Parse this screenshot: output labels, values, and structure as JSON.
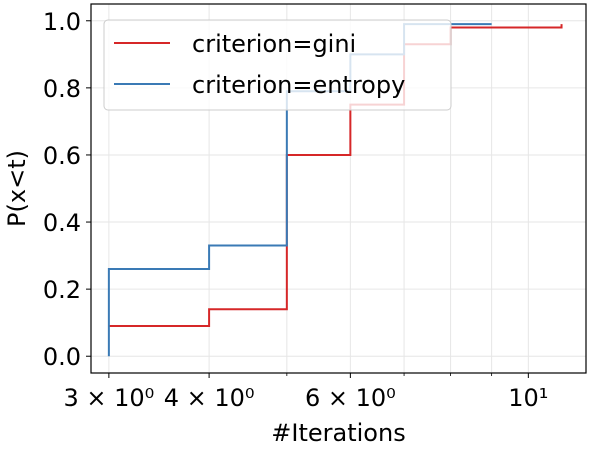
{
  "chart_data": {
    "type": "line",
    "step": "post",
    "x_scale": "log",
    "xlabel": "#Iterations",
    "ylabel": "P(x<t)",
    "xlim": [
      2.85,
      11.8
    ],
    "ylim": [
      -0.05,
      1.05
    ],
    "grid": true,
    "legend_position": "top-left",
    "x_ticks": [
      {
        "value": 3,
        "label": "3 × 10⁰"
      },
      {
        "value": 4,
        "label": "4 × 10⁰"
      },
      {
        "value": 6,
        "label": "6 × 10⁰"
      },
      {
        "value": 10,
        "label": "10¹"
      }
    ],
    "x_minor_ticks": [
      5,
      7,
      8,
      9
    ],
    "y_ticks": [
      {
        "value": 0.0,
        "label": "0.0"
      },
      {
        "value": 0.2,
        "label": "0.2"
      },
      {
        "value": 0.4,
        "label": "0.4"
      },
      {
        "value": 0.6,
        "label": "0.6"
      },
      {
        "value": 0.8,
        "label": "0.8"
      },
      {
        "value": 1.0,
        "label": "1.0"
      }
    ],
    "series": [
      {
        "name": "criterion=gini",
        "color": "#d62728",
        "x": [
          3,
          4,
          5,
          6,
          7,
          8,
          11
        ],
        "y": [
          0.09,
          0.14,
          0.6,
          0.75,
          0.93,
          0.98,
          0.99
        ]
      },
      {
        "name": "criterion=entropy",
        "color": "#3a7ab5",
        "x": [
          3,
          3,
          4,
          5,
          6,
          7,
          9
        ],
        "y": [
          0.0,
          0.26,
          0.33,
          0.79,
          0.9,
          0.99,
          0.99
        ]
      }
    ]
  }
}
